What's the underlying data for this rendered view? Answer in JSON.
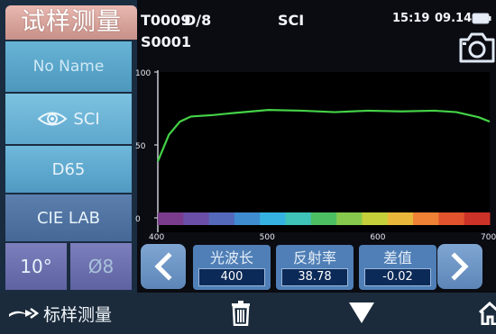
{
  "header": {
    "title": "试样测量",
    "instrument_code": "T0009",
    "geometry": "D/8",
    "mode": "SCI",
    "time": "15:19",
    "date": "09.14",
    "sample_id": "S0001"
  },
  "sidebar": {
    "sample_name": "No Name",
    "measure_mode": "SCI",
    "illuminant": "D65",
    "color_space": "CIE LAB",
    "observer_angle": "10°",
    "aperture": "Ø8"
  },
  "chart_data": {
    "type": "line",
    "x": [
      400,
      410,
      420,
      430,
      450,
      470,
      500,
      530,
      560,
      590,
      620,
      650,
      670,
      690,
      700
    ],
    "values": [
      38.8,
      57,
      66,
      69.5,
      70.5,
      72,
      74,
      73.5,
      72.5,
      73.5,
      73,
      73.5,
      72.5,
      69,
      66
    ],
    "xlim": [
      400,
      700
    ],
    "ylim": [
      0,
      100
    ],
    "xticks": [
      "400",
      "500",
      "600",
      "700"
    ],
    "yticks": [
      "100",
      "50",
      "0"
    ],
    "line_color": "#44d247",
    "spectrum_colors": [
      "#7b3c8e",
      "#6a4ea8",
      "#5569bb",
      "#3f8cd0",
      "#35b2e2",
      "#3fc2b8",
      "#4dbf63",
      "#86c94c",
      "#c4cf3a",
      "#e9b83a",
      "#ef8234",
      "#e3532d",
      "#cc3228"
    ]
  },
  "values_bar": {
    "wavelength_label": "光波长",
    "wavelength_value": "400",
    "reflectance_label": "反射率",
    "reflectance_value": "38.78",
    "difference_label": "差值",
    "difference_value": "-0.02"
  },
  "bottom": {
    "standard_measure_label": "标样测量"
  },
  "icons": [
    "eye-icon",
    "battery-icon",
    "camera-icon",
    "chevron-left-icon",
    "chevron-right-icon",
    "arrow-right-icon",
    "trash-icon",
    "triangle-down-icon",
    "home-icon"
  ]
}
